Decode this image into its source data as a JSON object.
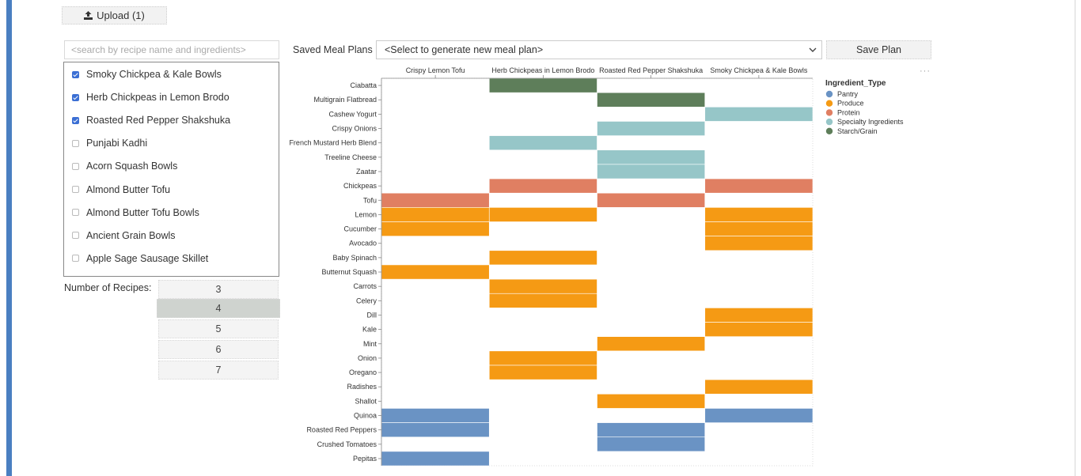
{
  "upload": {
    "label": "Upload (1)"
  },
  "search": {
    "placeholder": "<search by recipe name and ingredients>"
  },
  "recipes": [
    {
      "label": "Smoky Chickpea & Kale Bowls",
      "checked": true
    },
    {
      "label": "Herb Chickpeas in Lemon Brodo",
      "checked": true
    },
    {
      "label": "Roasted Red Pepper Shakshuka",
      "checked": true
    },
    {
      "label": "Punjabi Kadhi",
      "checked": false
    },
    {
      "label": "Acorn Squash Bowls",
      "checked": false
    },
    {
      "label": "Almond Butter Tofu",
      "checked": false
    },
    {
      "label": "Almond Butter Tofu Bowls",
      "checked": false
    },
    {
      "label": "Ancient Grain Bowls",
      "checked": false
    },
    {
      "label": "Apple Sage Sausage Skillet",
      "checked": false
    }
  ],
  "num_recipes": {
    "label": "Number of Recipes:",
    "options": [
      "3",
      "4",
      "5",
      "6",
      "7"
    ],
    "selected": "4"
  },
  "meal_plans": {
    "label": "Saved Meal Plans",
    "selected": "<Select to generate new meal plan>",
    "save_label": "Save Plan"
  },
  "chart_data": {
    "type": "heatmap",
    "columns": [
      "Crispy Lemon Tofu",
      "Herb Chickpeas in Lemon Brodo",
      "Roasted Red Pepper Shakshuka",
      "Smoky Chickpea & Kale Bowls"
    ],
    "rows": [
      "Ciabatta",
      "Multigrain Flatbread",
      "Cashew Yogurt",
      "Crispy Onions",
      "French Mustard Herb Blend",
      "Treeline Cheese",
      "Zaatar",
      "Chickpeas",
      "Tofu",
      "Lemon",
      "Cucumber",
      "Avocado",
      "Baby Spinach",
      "Butternut Squash",
      "Carrots",
      "Celery",
      "Dill",
      "Kale",
      "Mint",
      "Onion",
      "Oregano",
      "Radishes",
      "Shallot",
      "Quinoa",
      "Roasted Red Peppers",
      "Crushed Tomatoes",
      "Pepitas"
    ],
    "legend": {
      "title": "Ingredient_Type",
      "position": "right",
      "entries": [
        {
          "name": "Pantry",
          "color": "#6a93c4"
        },
        {
          "name": "Produce",
          "color": "#f59a14"
        },
        {
          "name": "Protein",
          "color": "#e07f62"
        },
        {
          "name": "Specialty Ingredients",
          "color": "#96c6c8"
        },
        {
          "name": "Starch/Grain",
          "color": "#5e7e5a"
        }
      ]
    },
    "cells": [
      {
        "row": "Ciabatta",
        "column": "Herb Chickpeas in Lemon Brodo",
        "type": "Starch/Grain"
      },
      {
        "row": "Multigrain Flatbread",
        "column": "Roasted Red Pepper Shakshuka",
        "type": "Starch/Grain"
      },
      {
        "row": "Cashew Yogurt",
        "column": "Smoky Chickpea & Kale Bowls",
        "type": "Specialty Ingredients"
      },
      {
        "row": "Crispy Onions",
        "column": "Roasted Red Pepper Shakshuka",
        "type": "Specialty Ingredients"
      },
      {
        "row": "French Mustard Herb Blend",
        "column": "Herb Chickpeas in Lemon Brodo",
        "type": "Specialty Ingredients"
      },
      {
        "row": "Treeline Cheese",
        "column": "Roasted Red Pepper Shakshuka",
        "type": "Specialty Ingredients"
      },
      {
        "row": "Zaatar",
        "column": "Roasted Red Pepper Shakshuka",
        "type": "Specialty Ingredients"
      },
      {
        "row": "Chickpeas",
        "column": "Herb Chickpeas in Lemon Brodo",
        "type": "Protein"
      },
      {
        "row": "Chickpeas",
        "column": "Smoky Chickpea & Kale Bowls",
        "type": "Protein"
      },
      {
        "row": "Tofu",
        "column": "Crispy Lemon Tofu",
        "type": "Protein"
      },
      {
        "row": "Tofu",
        "column": "Roasted Red Pepper Shakshuka",
        "type": "Protein"
      },
      {
        "row": "Lemon",
        "column": "Crispy Lemon Tofu",
        "type": "Produce"
      },
      {
        "row": "Lemon",
        "column": "Herb Chickpeas in Lemon Brodo",
        "type": "Produce"
      },
      {
        "row": "Lemon",
        "column": "Smoky Chickpea & Kale Bowls",
        "type": "Produce"
      },
      {
        "row": "Cucumber",
        "column": "Crispy Lemon Tofu",
        "type": "Produce"
      },
      {
        "row": "Cucumber",
        "column": "Smoky Chickpea & Kale Bowls",
        "type": "Produce"
      },
      {
        "row": "Avocado",
        "column": "Smoky Chickpea & Kale Bowls",
        "type": "Produce"
      },
      {
        "row": "Baby Spinach",
        "column": "Herb Chickpeas in Lemon Brodo",
        "type": "Produce"
      },
      {
        "row": "Butternut Squash",
        "column": "Crispy Lemon Tofu",
        "type": "Produce"
      },
      {
        "row": "Carrots",
        "column": "Herb Chickpeas in Lemon Brodo",
        "type": "Produce"
      },
      {
        "row": "Celery",
        "column": "Herb Chickpeas in Lemon Brodo",
        "type": "Produce"
      },
      {
        "row": "Dill",
        "column": "Smoky Chickpea & Kale Bowls",
        "type": "Produce"
      },
      {
        "row": "Kale",
        "column": "Smoky Chickpea & Kale Bowls",
        "type": "Produce"
      },
      {
        "row": "Mint",
        "column": "Roasted Red Pepper Shakshuka",
        "type": "Produce"
      },
      {
        "row": "Onion",
        "column": "Herb Chickpeas in Lemon Brodo",
        "type": "Produce"
      },
      {
        "row": "Oregano",
        "column": "Herb Chickpeas in Lemon Brodo",
        "type": "Produce"
      },
      {
        "row": "Radishes",
        "column": "Smoky Chickpea & Kale Bowls",
        "type": "Produce"
      },
      {
        "row": "Shallot",
        "column": "Roasted Red Pepper Shakshuka",
        "type": "Produce"
      },
      {
        "row": "Quinoa",
        "column": "Crispy Lemon Tofu",
        "type": "Pantry"
      },
      {
        "row": "Quinoa",
        "column": "Smoky Chickpea & Kale Bowls",
        "type": "Pantry"
      },
      {
        "row": "Roasted Red Peppers",
        "column": "Crispy Lemon Tofu",
        "type": "Pantry"
      },
      {
        "row": "Roasted Red Peppers",
        "column": "Roasted Red Pepper Shakshuka",
        "type": "Pantry"
      },
      {
        "row": "Crushed Tomatoes",
        "column": "Roasted Red Pepper Shakshuka",
        "type": "Pantry"
      },
      {
        "row": "Pepitas",
        "column": "Crispy Lemon Tofu",
        "type": "Pantry"
      }
    ]
  }
}
